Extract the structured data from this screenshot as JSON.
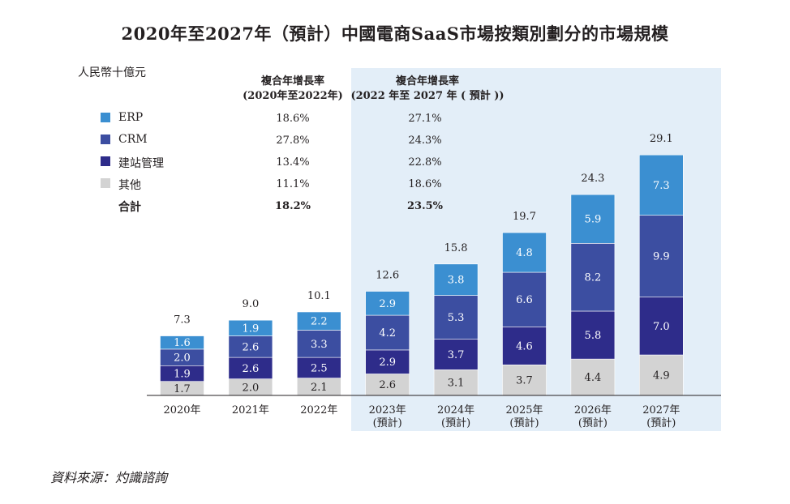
{
  "title": "2020年至2027年（預計）中國電商SaaS市場按類別劃分的市場規模",
  "unit_label": "人民幣十億元",
  "source": "資料來源：灼識諮詢",
  "cagr_headers": {
    "historical_line1": "複合年增長率",
    "historical_line2": "(2020年至2022年)",
    "forecast_line1": "複合年增長率",
    "forecast_line2": "(2022 年至 2027 年 ( 預計 ))"
  },
  "legend": [
    {
      "label": "ERP",
      "color": "#3b8fd1",
      "cagr_hist": "18.6%",
      "cagr_fore": "27.1%"
    },
    {
      "label": "CRM",
      "color": "#3c4ea1",
      "cagr_hist": "27.8%",
      "cagr_fore": "24.3%"
    },
    {
      "label": "建站管理",
      "color": "#2e2c8a",
      "cagr_hist": "13.4%",
      "cagr_fore": "22.8%"
    },
    {
      "label": "其他",
      "color": "#d3d3d3",
      "cagr_hist": "11.1%",
      "cagr_fore": "18.6%"
    }
  ],
  "total_row": {
    "label": "合計",
    "cagr_hist": "18.2%",
    "cagr_fore": "23.5%"
  },
  "chart_data": {
    "type": "bar",
    "stacked": true,
    "categories": [
      "2020年",
      "2021年",
      "2022年",
      "2023年\n(預計)",
      "2024年\n(預計)",
      "2025年\n(預計)",
      "2026年\n(預計)",
      "2027年\n(預計)"
    ],
    "series": [
      {
        "name": "其他",
        "color": "#d3d3d3",
        "values": [
          1.7,
          2.0,
          2.1,
          2.6,
          3.1,
          3.7,
          4.4,
          4.9
        ]
      },
      {
        "name": "建站管理",
        "color": "#2e2c8a",
        "values": [
          1.9,
          2.6,
          2.5,
          2.9,
          3.7,
          4.6,
          5.8,
          7.0
        ]
      },
      {
        "name": "CRM",
        "color": "#3c4ea1",
        "values": [
          2.0,
          2.6,
          3.3,
          4.2,
          5.3,
          6.6,
          8.2,
          9.9
        ]
      },
      {
        "name": "ERP",
        "color": "#3b8fd1",
        "values": [
          1.6,
          1.9,
          2.2,
          2.9,
          3.8,
          4.8,
          5.9,
          7.3
        ]
      }
    ],
    "totals": [
      7.3,
      9.0,
      10.1,
      12.6,
      15.8,
      19.7,
      24.3,
      29.1
    ],
    "forecast_start_index": 3,
    "forecast_shading": "#e3eef8",
    "ylim": [
      0,
      30
    ],
    "grid": false,
    "legend_position": "top-left"
  }
}
